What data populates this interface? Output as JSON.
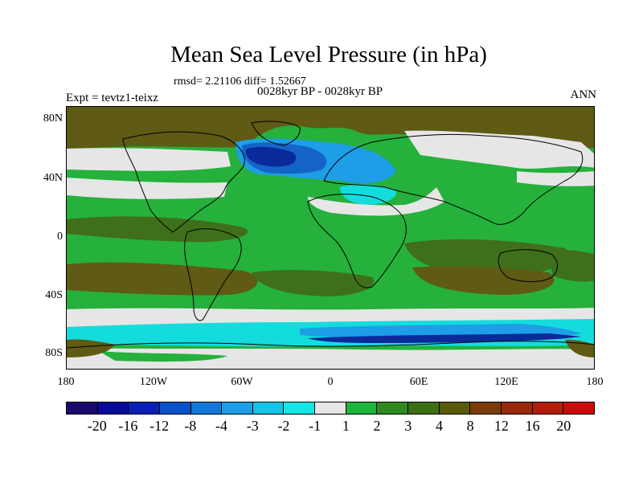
{
  "title": "Mean Sea Level Pressure (in hPa)",
  "stats": "rmsd= 2.21106 diff= 1.52667",
  "subtitle": "0028kyr BP - 0028kyr BP",
  "expt": "Expt = tevtz1-teixz",
  "season": "ANN",
  "lat_labels": [
    "80N",
    "40N",
    "0",
    "40S",
    "80S"
  ],
  "lon_labels": [
    "180",
    "120W",
    "60W",
    "0",
    "60E",
    "120E",
    "180"
  ],
  "colorbar": {
    "colors": [
      "#1a0a6e",
      "#0a0a9a",
      "#0a1fb4",
      "#0a52c8",
      "#1478d8",
      "#1e9ee6",
      "#14c4e8",
      "#14e6e6",
      "#e6e6e6",
      "#1eb43c",
      "#2e8a1e",
      "#3c6e14",
      "#5a5a0a",
      "#7a3c0a",
      "#962a0a",
      "#b21e0a",
      "#cc0a0a"
    ],
    "labels": [
      "-20",
      "-16",
      "-12",
      "-8",
      "-4",
      "-3",
      "-2",
      "-1",
      "1",
      "2",
      "3",
      "4",
      "8",
      "12",
      "16",
      "20"
    ]
  },
  "map_colors": {
    "brown": "#5f5a14",
    "dark_green": "#3f6f1b",
    "green": "#25b13c",
    "white": "#e6e6e6",
    "cyan": "#14dcdc",
    "light_blue": "#1e9ee6",
    "blue": "#1464c8",
    "dark_blue": "#0a2a9a"
  }
}
